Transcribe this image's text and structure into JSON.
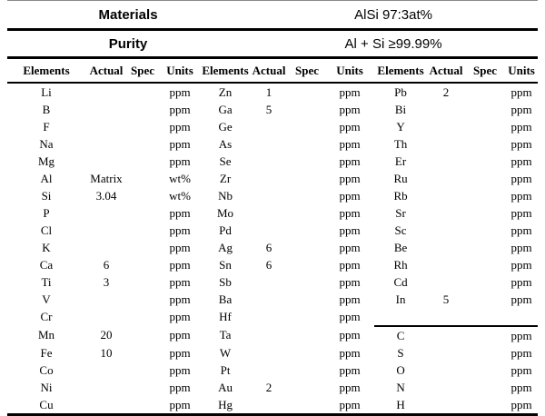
{
  "colors": {
    "text": "#000000",
    "background": "#ffffff",
    "rule": "#000000"
  },
  "header": {
    "materials_label": "Materials",
    "materials_value": "AlSi 97:3at%",
    "purity_label": "Purity",
    "purity_value": "Al + Si ≥99.99%"
  },
  "table": {
    "column_headers": [
      "Elements",
      "Actual",
      "Spec",
      "Units"
    ],
    "rows": [
      {
        "cells": [
          "Li",
          "",
          "",
          "ppm",
          "Zn",
          "1",
          "",
          "ppm",
          "Pb",
          "2",
          "",
          "ppm"
        ]
      },
      {
        "cells": [
          "B",
          "",
          "",
          "ppm",
          "Ga",
          "5",
          "",
          "ppm",
          "Bi",
          "",
          "",
          "ppm"
        ]
      },
      {
        "cells": [
          "F",
          "",
          "",
          "ppm",
          "Ge",
          "",
          "",
          "ppm",
          "Y",
          "",
          "",
          "ppm"
        ]
      },
      {
        "cells": [
          "Na",
          "",
          "",
          "ppm",
          "As",
          "",
          "",
          "ppm",
          "Th",
          "",
          "",
          "ppm"
        ]
      },
      {
        "cells": [
          "Mg",
          "",
          "",
          "ppm",
          "Se",
          "",
          "",
          "ppm",
          "Er",
          "",
          "",
          "ppm"
        ]
      },
      {
        "cells": [
          "Al",
          "Matrix",
          "",
          "wt%",
          "Zr",
          "",
          "",
          "ppm",
          "Ru",
          "",
          "",
          "ppm"
        ]
      },
      {
        "cells": [
          "Si",
          "3.04",
          "",
          "wt%",
          "Nb",
          "",
          "",
          "ppm",
          "Rb",
          "",
          "",
          "ppm"
        ]
      },
      {
        "cells": [
          "P",
          "",
          "",
          "ppm",
          "Mo",
          "",
          "",
          "ppm",
          "Sr",
          "",
          "",
          "ppm"
        ]
      },
      {
        "cells": [
          "Cl",
          "",
          "",
          "ppm",
          "Pd",
          "",
          "",
          "ppm",
          "Sc",
          "",
          "",
          "ppm"
        ]
      },
      {
        "cells": [
          "K",
          "",
          "",
          "ppm",
          "Ag",
          "6",
          "",
          "ppm",
          "Be",
          "",
          "",
          "ppm"
        ]
      },
      {
        "cells": [
          "Ca",
          "6",
          "",
          "ppm",
          "Sn",
          "6",
          "",
          "ppm",
          "Rh",
          "",
          "",
          "ppm"
        ]
      },
      {
        "cells": [
          "Ti",
          "3",
          "",
          "ppm",
          "Sb",
          "",
          "",
          "ppm",
          "Cd",
          "",
          "",
          "ppm"
        ]
      },
      {
        "cells": [
          "V",
          "",
          "",
          "ppm",
          "Ba",
          "",
          "",
          "ppm",
          "In",
          "5",
          "",
          "ppm"
        ]
      },
      {
        "cells": [
          "Cr",
          "",
          "",
          "ppm",
          "Hf",
          "",
          "",
          "ppm",
          "",
          "",
          "",
          ""
        ],
        "g3_rule": true
      },
      {
        "cells": [
          "Mn",
          "20",
          "",
          "ppm",
          "Ta",
          "",
          "",
          "ppm",
          "C",
          "",
          "",
          "ppm"
        ]
      },
      {
        "cells": [
          "Fe",
          "10",
          "",
          "ppm",
          "W",
          "",
          "",
          "ppm",
          "S",
          "",
          "",
          "ppm"
        ]
      },
      {
        "cells": [
          "Co",
          "",
          "",
          "ppm",
          "Pt",
          "",
          "",
          "ppm",
          "O",
          "",
          "",
          "ppm"
        ]
      },
      {
        "cells": [
          "Ni",
          "",
          "",
          "ppm",
          "Au",
          "2",
          "",
          "ppm",
          "N",
          "",
          "",
          "ppm"
        ]
      },
      {
        "cells": [
          "Cu",
          "",
          "",
          "ppm",
          "Hg",
          "",
          "",
          "ppm",
          "H",
          "",
          "",
          "ppm"
        ]
      }
    ]
  }
}
